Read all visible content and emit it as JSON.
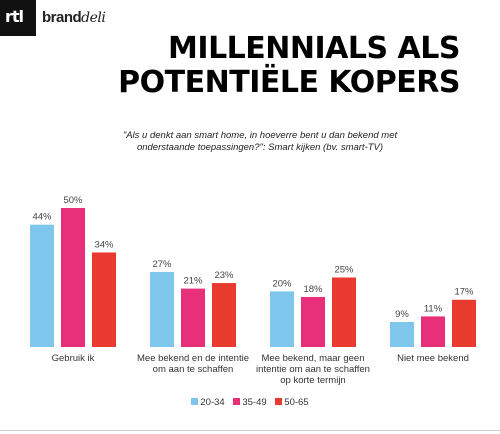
{
  "header": {
    "logo_rtl": "rtl",
    "logo_brand_a": "brand",
    "logo_brand_b": "deli"
  },
  "title_lines": [
    "MILLENNIALS ALS",
    "POTENTIËLE KOPERS"
  ],
  "question": "\"Als u denkt aan smart home, in hoeverre bent u dan bekend met onderstaande toepassingen?\": Smart kijken (bv. smart-TV)",
  "colors": {
    "s1": "#7fc6ec",
    "s2": "#e8307a",
    "s3": "#e83a2e"
  },
  "chart_data": {
    "type": "bar",
    "categories": [
      [
        "Gebruik ik"
      ],
      [
        "Mee bekend en de intentie",
        "om aan te schaffen"
      ],
      [
        "Mee bekend, maar geen",
        "intentie om aan te schaffen",
        "op korte termijn"
      ],
      [
        "Niet mee bekend"
      ]
    ],
    "series": [
      {
        "name": "20-34",
        "values": [
          44,
          27,
          20,
          9
        ]
      },
      {
        "name": "35-49",
        "values": [
          50,
          21,
          18,
          11
        ]
      },
      {
        "name": "50-65",
        "values": [
          34,
          23,
          25,
          17
        ]
      }
    ],
    "value_suffix": "%",
    "ylim": [
      0,
      50
    ],
    "legend_position": "bottom"
  }
}
